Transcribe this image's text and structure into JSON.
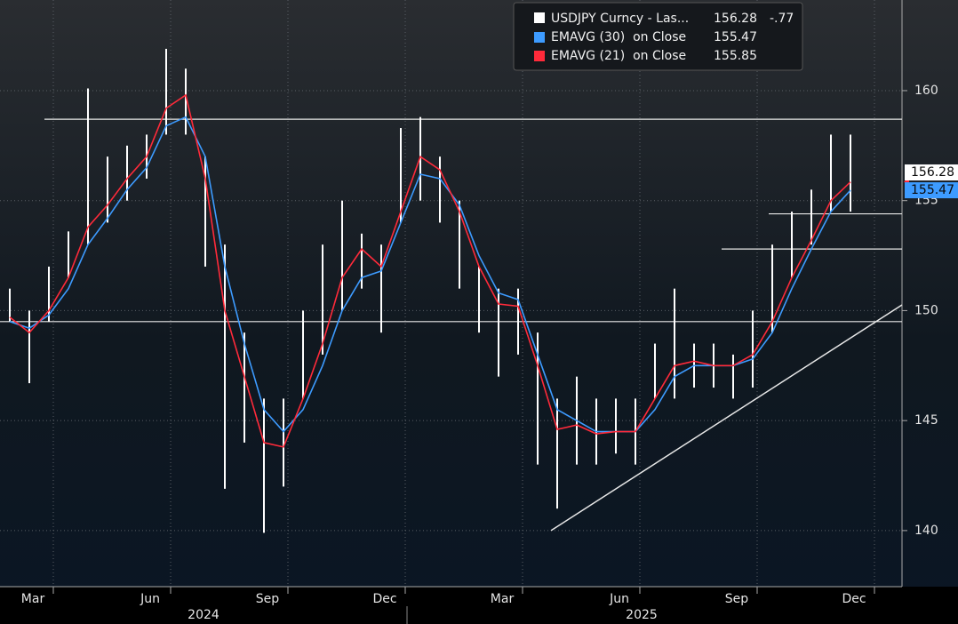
{
  "chart_data": {
    "type": "ohlc",
    "categories": [
      null,
      "Mar",
      null,
      null,
      null,
      null,
      null,
      "Jun",
      null,
      null,
      null,
      null,
      null,
      "Sep",
      null,
      null,
      null,
      null,
      null,
      "Dec",
      null,
      null,
      null,
      null,
      null,
      "Mar",
      null,
      null,
      null,
      null,
      null,
      "Jun",
      null,
      null,
      null,
      null,
      null,
      "Sep",
      null,
      null,
      null,
      null,
      null,
      "Dec"
    ],
    "years": [
      "2024",
      "2025"
    ],
    "series": [
      {
        "name": "USDJPY Curncy - Las...",
        "color": "#ffffff",
        "last": 156.28,
        "change": {
          "value": -0.77,
          "label": "-.77"
        },
        "high": [
          151,
          150,
          152,
          153.6,
          160.1,
          157,
          157.5,
          158,
          161.9,
          161,
          157,
          153,
          149,
          146,
          146,
          150,
          153,
          155,
          153.5,
          153,
          158.3,
          158.8,
          157,
          155,
          152,
          151,
          151,
          149,
          146,
          147,
          146,
          146,
          146,
          148.5,
          151,
          148.5,
          148.5,
          148,
          150,
          153,
          154.5,
          155.5,
          158,
          158
        ],
        "low": [
          149.5,
          146.7,
          149.5,
          151.5,
          153,
          154,
          155,
          156,
          158,
          158,
          152,
          141.9,
          144,
          139.9,
          142,
          146,
          148,
          150,
          151,
          149,
          154,
          155,
          154,
          151,
          149,
          147,
          148,
          143,
          141,
          143,
          143,
          143.5,
          143,
          146,
          146,
          146.5,
          146.5,
          146,
          146.5,
          149,
          151.5,
          153,
          154.5,
          154.5
        ]
      },
      {
        "name": "EMAVG (30)  on Close",
        "color": "#3d9bff",
        "last": 155.47,
        "values": [
          149.5,
          149.2,
          149.8,
          151,
          153,
          154.2,
          155.5,
          156.5,
          158.4,
          158.8,
          157,
          152,
          148.5,
          145.5,
          144.5,
          145.5,
          147.5,
          150,
          151.5,
          151.8,
          154,
          156.2,
          156,
          154.8,
          152.5,
          150.8,
          150.5,
          148,
          145.5,
          145,
          144.5,
          144.5,
          144.5,
          145.5,
          147,
          147.5,
          147.5,
          147.5,
          147.8,
          149,
          151,
          152.8,
          154.5,
          155.47
        ]
      },
      {
        "name": "EMAVG (21)  on Close",
        "color": "#ff2a3a",
        "last": 155.85,
        "values": [
          149.7,
          149,
          150,
          151.5,
          153.8,
          154.8,
          156,
          157,
          159.2,
          159.8,
          156,
          150,
          147,
          144,
          143.8,
          146,
          148.5,
          151.5,
          152.8,
          152,
          154.5,
          157,
          156.4,
          154.5,
          152,
          150.3,
          150.2,
          147.5,
          144.6,
          144.8,
          144.4,
          144.5,
          144.5,
          146,
          147.5,
          147.7,
          147.5,
          147.5,
          148,
          149.5,
          151.5,
          153.2,
          155,
          155.85
        ]
      }
    ],
    "levels": [
      158.7,
      149.5,
      154.4,
      152.8
    ],
    "trendline": [
      140,
      150.26
    ],
    "ylim": [
      137.45,
      164.12
    ],
    "yticks": [
      140,
      145,
      150,
      155,
      160
    ],
    "grid": true
  }
}
